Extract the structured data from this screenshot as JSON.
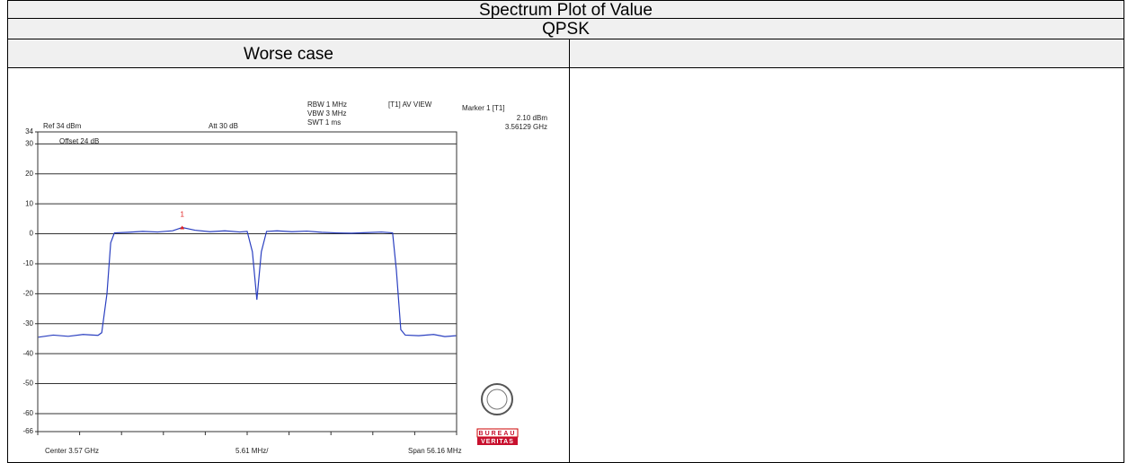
{
  "header": {
    "title": "Spectrum Plot of Value",
    "modulation": "QPSK",
    "case": "Worse case"
  },
  "chart_data": {
    "type": "line",
    "annotations": [
      "Ref 34 dBm",
      "Att 30 dB",
      "RBW 1 MHz",
      "VBW 3 MHz",
      "SWT 1 ms",
      "[T1] AV VIEW",
      "Marker 1 [T1]",
      "2.10 dBm",
      "3.56129 GHz",
      "Offset 24 dB",
      "Center 3.57 GHz",
      "5.61 MHz/",
      "Span 56.16 MHz"
    ],
    "ylim": [
      -66,
      34
    ],
    "yticks": [
      34,
      30,
      20,
      10,
      0,
      -10,
      -20,
      -30,
      -40,
      -50,
      -60,
      -66
    ],
    "grid": true,
    "xlim": [
      3.54192,
      3.59808
    ],
    "xticks": [
      3.54192,
      3.547536,
      3.553152,
      3.558768,
      3.564384,
      3.57,
      3.575616,
      3.581232,
      3.586848,
      3.592464,
      3.59808
    ],
    "x": [
      3.542,
      3.544,
      3.546,
      3.548,
      3.55,
      3.5505,
      3.5512,
      3.5517,
      3.5522,
      3.554,
      3.556,
      3.558,
      3.56,
      3.56129,
      3.563,
      3.565,
      3.567,
      3.569,
      3.57,
      3.5707,
      3.5713,
      3.5719,
      3.5726,
      3.574,
      3.576,
      3.578,
      3.58,
      3.582,
      3.584,
      3.586,
      3.588,
      3.5895,
      3.59,
      3.5906,
      3.5912,
      3.593,
      3.595,
      3.5965,
      3.598
    ],
    "series": [
      {
        "color": "#2a3fc0",
        "values": [
          -34.5,
          -33.8,
          -34.2,
          -33.6,
          -33.9,
          -33,
          -20,
          -3,
          0.3,
          0.5,
          0.8,
          0.6,
          1.0,
          2.1,
          1.2,
          0.7,
          1.0,
          0.6,
          0.8,
          -6,
          -22,
          -6,
          0.8,
          1.0,
          0.7,
          0.9,
          0.5,
          0.3,
          0.2,
          0.4,
          0.6,
          0.3,
          -12,
          -32,
          -33.8,
          -34,
          -33.6,
          -34.3,
          -34
        ]
      }
    ],
    "marker": {
      "label": "1",
      "x": 3.56129,
      "y": 2.1,
      "color": "#e02020"
    },
    "logo": [
      "BUREAU",
      "VERITAS"
    ]
  }
}
